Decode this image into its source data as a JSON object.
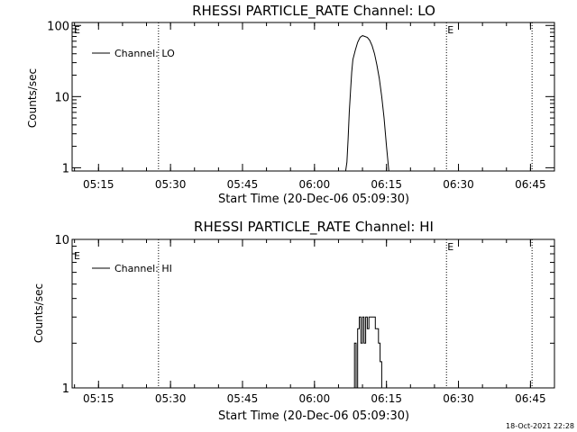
{
  "footer": {
    "timestamp": "18-Oct-2021 22:28"
  },
  "chart_data": [
    {
      "type": "line",
      "title": "RHESSI PARTICLE_RATE Channel: LO",
      "xlabel": "Start Time (20-Dec-06 05:09:30)",
      "ylabel": "Counts/sec",
      "yscale": "log",
      "ylim": [
        0.9,
        110
      ],
      "yticks": [
        {
          "value": 1,
          "label": "1"
        },
        {
          "value": 10,
          "label": "10"
        },
        {
          "value": 100,
          "label": "100"
        }
      ],
      "xlim": [
        "05:09:30",
        "06:50:00"
      ],
      "xticks": [
        "05:15",
        "05:30",
        "05:45",
        "06:00",
        "06:15",
        "06:30",
        "06:45"
      ],
      "markers": [
        {
          "time": "05:27:30",
          "label": ""
        },
        {
          "time": "06:27:30",
          "label": "E"
        },
        {
          "time": "06:45:20",
          "label": ""
        }
      ],
      "corner_label": "E",
      "legend": {
        "entries": [
          "Channel: LO"
        ],
        "position": "top-left"
      },
      "series": [
        {
          "name": "Channel: LO",
          "x": [
            "06:06:30",
            "06:06:45",
            "06:07:00",
            "06:07:15",
            "06:07:30",
            "06:07:45",
            "06:08:00",
            "06:08:30",
            "06:09:00",
            "06:09:30",
            "06:10:00",
            "06:10:30",
            "06:11:00",
            "06:11:30",
            "06:12:00",
            "06:12:30",
            "06:13:00",
            "06:13:30",
            "06:14:00",
            "06:14:30",
            "06:15:00",
            "06:15:30"
          ],
          "values": [
            0.8,
            1.2,
            2.5,
            6,
            12,
            22,
            33,
            45,
            58,
            68,
            72,
            70,
            68,
            62,
            52,
            40,
            28,
            18,
            10,
            5,
            2,
            0.8
          ]
        }
      ]
    },
    {
      "type": "line",
      "title": "RHESSI PARTICLE_RATE Channel: HI",
      "xlabel": "Start Time (20-Dec-06 05:09:30)",
      "ylabel": "Counts/sec",
      "yscale": "log",
      "ylim": [
        1,
        10
      ],
      "yticks": [
        {
          "value": 1,
          "label": "1"
        },
        {
          "value": 10,
          "label": "10"
        }
      ],
      "xlim": [
        "05:09:30",
        "06:50:00"
      ],
      "xticks": [
        "05:15",
        "05:30",
        "05:45",
        "06:00",
        "06:15",
        "06:30",
        "06:45"
      ],
      "markers": [
        {
          "time": "05:27:30",
          "label": ""
        },
        {
          "time": "06:27:30",
          "label": "E"
        },
        {
          "time": "06:45:20",
          "label": ""
        }
      ],
      "corner_label": "E",
      "legend": {
        "entries": [
          "Channel: HI"
        ],
        "position": "top-left"
      },
      "series": [
        {
          "name": "Channel: HI",
          "x": [
            "06:08:20",
            "06:08:20",
            "06:08:40",
            "06:08:40",
            "06:09:00",
            "06:09:00",
            "06:09:20",
            "06:09:20",
            "06:09:40",
            "06:09:40",
            "06:10:00",
            "06:10:00",
            "06:10:20",
            "06:10:20",
            "06:10:40",
            "06:10:40",
            "06:11:00",
            "06:11:00",
            "06:11:20",
            "06:11:20",
            "06:11:40",
            "06:11:40",
            "06:12:40",
            "06:12:40",
            "06:13:20",
            "06:13:20",
            "06:13:40",
            "06:13:40",
            "06:14:00",
            "06:14:00"
          ],
          "values": [
            1,
            2,
            2,
            1,
            1,
            2.5,
            2.5,
            3,
            3,
            2,
            2,
            3,
            3,
            2,
            2,
            3,
            3,
            2.5,
            2.5,
            3,
            3,
            3,
            3,
            2.5,
            2.5,
            2,
            2,
            1.5,
            1.5,
            1
          ]
        }
      ]
    }
  ]
}
